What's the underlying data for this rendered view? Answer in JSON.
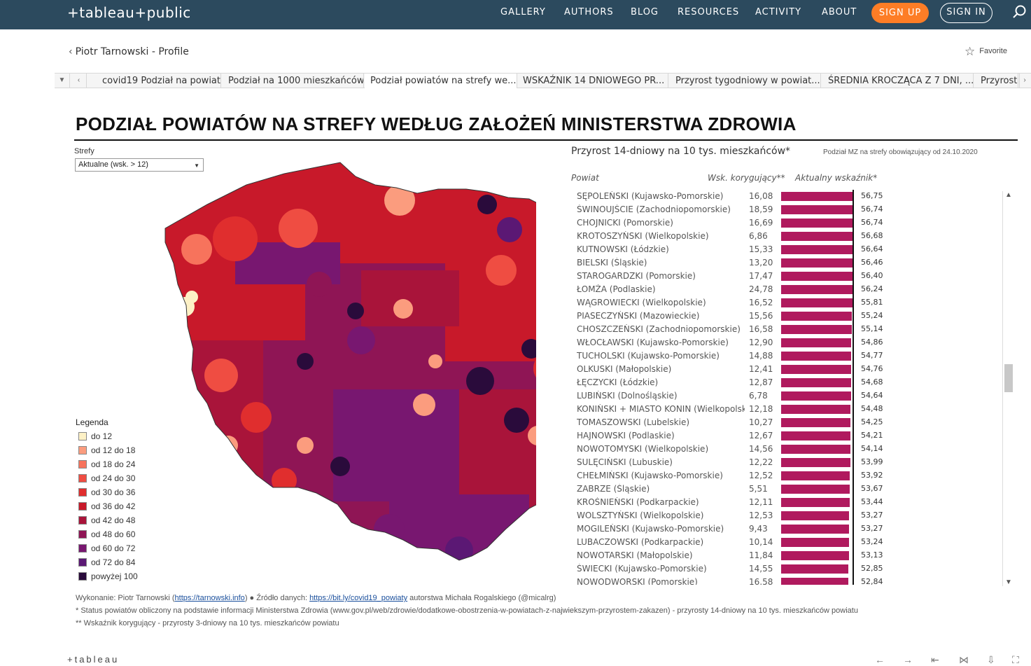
{
  "nav": {
    "logo": "+tableau+public",
    "links": [
      "GALLERY",
      "AUTHORS",
      "BLOG",
      "RESOURCES",
      "ACTIVITY",
      "ABOUT"
    ],
    "signup": "SIGN UP",
    "signin": "SIGN IN",
    "search_icon": "search-icon"
  },
  "profile": {
    "back_label": "Piotr Tarnowski - Profile",
    "favorite_label": "Favorite"
  },
  "tabs": [
    {
      "label": "covid19 Podział na powiaty",
      "active": false
    },
    {
      "label": "Podział na 1000 mieszkańców",
      "active": false
    },
    {
      "label": "Podział powiatów na strefy we...",
      "active": true
    },
    {
      "label": "WSKAŹNIK 14 DNIOWEGO PR...",
      "active": false
    },
    {
      "label": "Przyrost tygodniowy w powiat...",
      "active": false
    },
    {
      "label": "ŚREDNIA KROCZĄCA Z 7 DNI, ...",
      "active": false
    },
    {
      "label": "Przyrost",
      "active": false
    }
  ],
  "dashboard": {
    "title": "PODZIAŁ POWIATÓW NA STREFY WEDŁUG ZAŁOŻEŃ MINISTERSTWA ZDROWIA",
    "filter_label": "Strefy",
    "filter_value": "Aktualne (wsk. > 12)",
    "legend_title": "Legenda",
    "legend": [
      {
        "label": "do 12",
        "color": "#fdf1c6"
      },
      {
        "label": "od 12 do 18",
        "color": "#fb9c7e"
      },
      {
        "label": "od 18 do 24",
        "color": "#f7735c"
      },
      {
        "label": "od 24 do 30",
        "color": "#ef4d42"
      },
      {
        "label": "od 30 do 36",
        "color": "#e02e2e"
      },
      {
        "label": "od 36 do 42",
        "color": "#c8192a"
      },
      {
        "label": "od 42 do 48",
        "color": "#a9143a"
      },
      {
        "label": "od 48 do 60",
        "color": "#8f1555"
      },
      {
        "label": "od 60 do 72",
        "color": "#781770"
      },
      {
        "label": "od 72 do 84",
        "color": "#5b1874"
      },
      {
        "label": "powyżej 100",
        "color": "#2a0b3b"
      }
    ],
    "chart_title": "Przyrost 14-dniowy na 10 tys. mieszkańców*",
    "chart_subtitle": "Podział MZ na strefy obowiązujący od 24.10.2020",
    "col_powiat": "Powiat",
    "col_kor": "Wsk. korygujący**",
    "col_akt": "Aktualny wskaźnik*",
    "bar_color": "#b01a5e",
    "footer_author_prefix": "Wykonanie: Piotr Tarnowski (",
    "footer_author_link": "https://tarnowski.info",
    "footer_source_prefix": ")  ●  Źródło danych: ",
    "footer_source_link": "https://bit.ly/covid19_powiaty",
    "footer_source_suffix": " autorstwa Michała Rogalskiego (@micalrg)",
    "footer_note1": "* Status powiatów obliczony na podstawie informacji Ministerstwa Zdrowia (www.gov.pl/web/zdrowie/dodatkowe-obostrzenia-w-powiatach-z-najwiekszym-przyrostem-zakazen) -  przyrosty 14-dniowy na 10 tys. mieszkańców powiatu",
    "footer_note2": "** Wskaźnik korygujący - przyrosty 3-dniowy na 10 tys. mieszkańców powiatu",
    "tableau_footer": "+tableau"
  },
  "chart_data": {
    "type": "bar",
    "title": "Przyrost 14-dniowy na 10 tys. mieszkańców*",
    "categories": [
      "SĘPOLEŃSKI (Kujawsko-Pomorskie)",
      "ŚWINOUJŚCIE (Zachodniopomorskie)",
      "CHOJNICKI (Pomorskie)",
      "KROTOSZYŃSKI (Wielkopolskie)",
      "KUTNOWSKI (Łódzkie)",
      "BIELSKI (Śląskie)",
      "STAROGARDZKI (Pomorskie)",
      "ŁOMŻA (Podlaskie)",
      "WĄGROWIECKI (Wielkopolskie)",
      "PIASECZYŃSKI (Mazowieckie)",
      "CHOSZCZEŃSKI (Zachodniopomorskie)",
      "WŁOCŁAWSKI (Kujawsko-Pomorskie)",
      "TUCHOLSKI (Kujawsko-Pomorskie)",
      "OLKUSKI (Małopolskie)",
      "ŁĘCZYCKI (Łódzkie)",
      "LUBIŃSKI (Dolnośląskie)",
      "KONIŃSKI + MIASTO KONIN (Wielkopolsk..",
      "TOMASZOWSKI (Lubelskie)",
      "HAJNOWSKI (Podlaskie)",
      "NOWOTOMYSKI (Wielkopolskie)",
      "SULĘCIŃSKI (Lubuskie)",
      "CHEŁMIŃSKI (Kujawsko-Pomorskie)",
      "ZABRZE (Śląskie)",
      "KROŚNIEŃSKI (Podkarpackie)",
      "WOLSZTYŃSKI (Wielkopolskie)",
      "MOGILEŃSKI (Kujawsko-Pomorskie)",
      "LUBACZOWSKI (Podkarpackie)",
      "NOWOTARSKI (Małopolskie)",
      "ŚWIECKI (Kujawsko-Pomorskie)",
      "NOWODWORSKI (Pomorskie)"
    ],
    "korygujacy": [
      "16,08",
      "18,59",
      "16,69",
      "6,86",
      "15,33",
      "13,20",
      "17,47",
      "24,78",
      "16,52",
      "15,56",
      "16,58",
      "12,90",
      "14,88",
      "12,41",
      "12,87",
      "6,78",
      "12,18",
      "10,27",
      "12,67",
      "14,56",
      "12,22",
      "12,52",
      "5,51",
      "12,11",
      "12,53",
      "9,43",
      "10,14",
      "11,84",
      "14,55",
      "16,58"
    ],
    "values_label": [
      "56,75",
      "56,74",
      "56,74",
      "56,68",
      "56,64",
      "56,46",
      "56,40",
      "56,24",
      "55,81",
      "55,24",
      "55,14",
      "54,86",
      "54,77",
      "54,76",
      "54,68",
      "54,64",
      "54,48",
      "54,25",
      "54,21",
      "54,14",
      "53,99",
      "53,92",
      "53,67",
      "53,44",
      "53,27",
      "53,27",
      "53,24",
      "53,13",
      "52,85",
      "52,84"
    ],
    "values": [
      56.75,
      56.74,
      56.74,
      56.68,
      56.64,
      56.46,
      56.4,
      56.24,
      55.81,
      55.24,
      55.14,
      54.86,
      54.77,
      54.76,
      54.68,
      54.64,
      54.48,
      54.25,
      54.21,
      54.14,
      53.99,
      53.92,
      53.67,
      53.44,
      53.27,
      53.27,
      53.24,
      53.13,
      52.85,
      52.84
    ]
  }
}
